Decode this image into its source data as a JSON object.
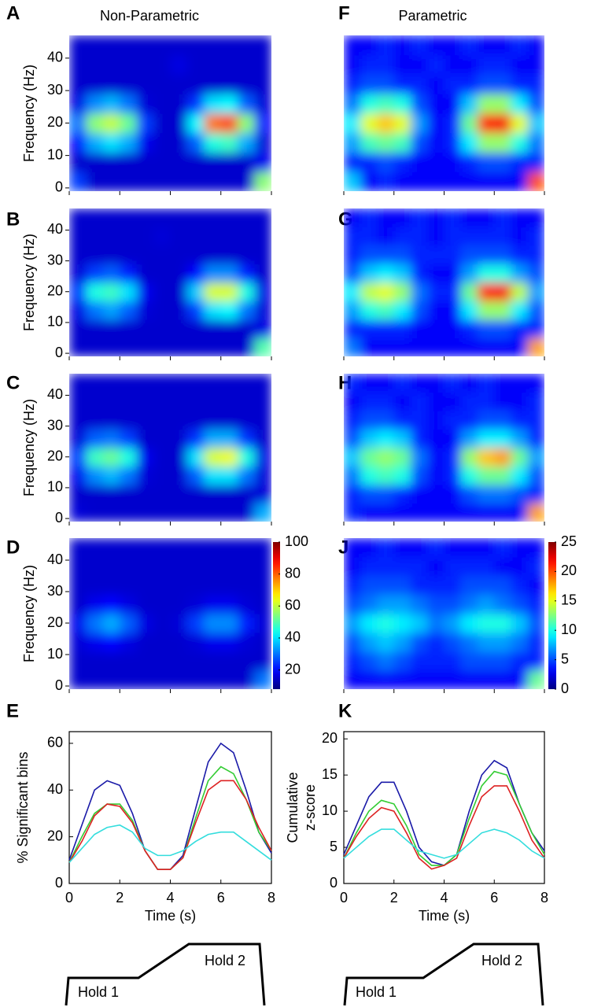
{
  "columns": [
    "Non-Parametric",
    "Parametric"
  ],
  "chart_data": [
    {
      "type": "heatmap",
      "panel": "A",
      "ylabel": "Frequency (Hz)",
      "xlim": [
        0,
        8
      ],
      "xticks": [
        0,
        2,
        4,
        6,
        8
      ],
      "ylim": [
        -1,
        47
      ],
      "yticks": [
        0,
        10,
        20,
        30,
        40
      ],
      "clim": [
        8,
        100
      ],
      "z": [
        [
          25,
          15,
          15,
          15,
          15,
          15,
          15,
          15,
          15,
          15,
          15,
          55
        ],
        [
          15,
          15,
          15,
          15,
          15,
          15,
          15,
          15,
          15,
          15,
          15,
          18
        ],
        [
          20,
          35,
          40,
          35,
          18,
          15,
          15,
          28,
          45,
          48,
          35,
          16
        ],
        [
          30,
          55,
          60,
          52,
          25,
          15,
          15,
          42,
          78,
          82,
          55,
          20
        ],
        [
          17,
          32,
          36,
          30,
          16,
          15,
          15,
          24,
          40,
          42,
          28,
          16
        ],
        [
          15,
          15,
          15,
          15,
          15,
          15,
          15,
          15,
          15,
          15,
          15,
          15
        ],
        [
          15,
          15,
          15,
          15,
          15,
          15,
          17,
          15,
          15,
          15,
          15,
          15
        ],
        [
          15,
          15,
          15,
          15,
          15,
          15,
          15,
          15,
          15,
          15,
          15,
          15
        ]
      ]
    },
    {
      "type": "heatmap",
      "panel": "B",
      "ylabel": "Frequency (Hz)",
      "xlim": [
        0,
        8
      ],
      "xticks": [
        0,
        2,
        4,
        6,
        8
      ],
      "ylim": [
        -1,
        47
      ],
      "yticks": [
        0,
        10,
        20,
        30,
        40
      ],
      "clim": [
        8,
        100
      ],
      "z": [
        [
          15,
          15,
          15,
          15,
          15,
          15,
          15,
          15,
          15,
          15,
          15,
          50
        ],
        [
          15,
          15,
          15,
          15,
          15,
          15,
          15,
          15,
          15,
          15,
          15,
          17
        ],
        [
          17,
          30,
          34,
          28,
          16,
          15,
          15,
          25,
          40,
          42,
          30,
          16
        ],
        [
          25,
          45,
          48,
          40,
          18,
          15,
          15,
          38,
          62,
          62,
          45,
          17
        ],
        [
          16,
          25,
          28,
          22,
          15,
          15,
          15,
          20,
          32,
          32,
          22,
          15
        ],
        [
          15,
          15,
          15,
          15,
          15,
          15,
          15,
          15,
          15,
          15,
          15,
          15
        ],
        [
          15,
          15,
          15,
          15,
          15,
          16,
          15,
          15,
          15,
          15,
          15,
          15
        ],
        [
          15,
          15,
          15,
          15,
          15,
          15,
          15,
          15,
          15,
          15,
          15,
          15
        ]
      ]
    },
    {
      "type": "heatmap",
      "panel": "C",
      "ylabel": "Frequency (Hz)",
      "xlim": [
        0,
        8
      ],
      "xticks": [
        0,
        2,
        4,
        6,
        8
      ],
      "ylim": [
        -1,
        47
      ],
      "yticks": [
        0,
        10,
        20,
        30,
        40
      ],
      "clim": [
        8,
        100
      ],
      "z": [
        [
          16,
          15,
          15,
          15,
          15,
          15,
          15,
          15,
          15,
          15,
          15,
          35
        ],
        [
          15,
          15,
          15,
          15,
          15,
          15,
          15,
          15,
          15,
          15,
          15,
          16
        ],
        [
          18,
          32,
          36,
          30,
          16,
          15,
          15,
          28,
          40,
          40,
          30,
          16
        ],
        [
          25,
          48,
          52,
          45,
          18,
          15,
          15,
          40,
          62,
          64,
          45,
          17
        ],
        [
          16,
          28,
          30,
          25,
          15,
          15,
          15,
          24,
          35,
          35,
          24,
          15
        ],
        [
          15,
          15,
          15,
          15,
          15,
          15,
          15,
          15,
          15,
          15,
          15,
          15
        ],
        [
          15,
          15,
          15,
          15,
          15,
          15,
          15,
          15,
          15,
          15,
          15,
          15
        ],
        [
          15,
          15,
          15,
          15,
          15,
          15,
          15,
          15,
          15,
          15,
          15,
          15
        ]
      ]
    },
    {
      "type": "heatmap",
      "panel": "D",
      "ylabel": "Frequency (Hz)",
      "xlim": [
        0,
        8
      ],
      "xticks": [
        0,
        2,
        4,
        6,
        8
      ],
      "ylim": [
        -1,
        47
      ],
      "yticks": [
        0,
        10,
        20,
        30,
        40
      ],
      "clim": [
        8,
        100
      ],
      "z": [
        [
          15,
          15,
          15,
          15,
          15,
          15,
          15,
          15,
          15,
          15,
          15,
          30
        ],
        [
          15,
          15,
          15,
          15,
          15,
          15,
          15,
          15,
          15,
          15,
          15,
          15
        ],
        [
          16,
          18,
          20,
          17,
          15,
          15,
          15,
          16,
          18,
          18,
          16,
          15
        ],
        [
          18,
          30,
          35,
          28,
          17,
          15,
          16,
          25,
          32,
          32,
          22,
          16
        ],
        [
          15,
          18,
          20,
          17,
          15,
          15,
          15,
          16,
          18,
          18,
          16,
          15
        ],
        [
          15,
          15,
          15,
          15,
          15,
          15,
          15,
          15,
          15,
          15,
          15,
          15
        ],
        [
          15,
          15,
          15,
          15,
          15,
          15,
          15,
          15,
          15,
          15,
          15,
          15
        ],
        [
          15,
          15,
          15,
          15,
          15,
          15,
          15,
          15,
          15,
          15,
          15,
          15
        ]
      ]
    },
    {
      "type": "heatmap",
      "panel": "F",
      "xlim": [
        0,
        8
      ],
      "xticks": [
        0,
        2,
        4,
        6,
        8
      ],
      "ylim": [
        -1,
        47
      ],
      "clim": [
        0,
        25
      ],
      "z": [
        [
          8,
          3,
          4,
          3,
          3,
          3,
          3,
          3,
          3,
          3,
          3,
          20
        ],
        [
          4,
          4,
          5,
          4,
          3,
          3,
          3,
          4,
          5,
          5,
          4,
          4
        ],
        [
          7,
          11,
          12,
          11,
          5,
          3,
          4,
          9,
          13,
          13,
          10,
          6
        ],
        [
          9,
          15,
          17,
          15,
          7,
          3,
          4,
          12,
          21,
          22,
          15,
          8
        ],
        [
          6,
          10,
          11,
          10,
          5,
          3,
          3,
          8,
          13,
          13,
          9,
          5
        ],
        [
          4,
          5,
          5,
          4,
          4,
          3,
          4,
          4,
          5,
          5,
          4,
          4
        ],
        [
          3,
          4,
          4,
          3,
          3,
          4,
          3,
          3,
          4,
          4,
          3,
          3
        ],
        [
          3,
          3,
          4,
          3,
          4,
          3,
          3,
          4,
          3,
          3,
          4,
          3
        ]
      ]
    },
    {
      "type": "heatmap",
      "panel": "G",
      "xlim": [
        0,
        8
      ],
      "xticks": [
        0,
        2,
        4,
        6,
        8
      ],
      "ylim": [
        -1,
        47
      ],
      "clim": [
        0,
        25
      ],
      "z": [
        [
          6,
          3,
          3,
          3,
          3,
          3,
          3,
          3,
          3,
          3,
          3,
          18
        ],
        [
          4,
          4,
          4,
          4,
          3,
          3,
          3,
          4,
          5,
          5,
          4,
          4
        ],
        [
          7,
          10,
          11,
          9,
          5,
          3,
          3,
          9,
          13,
          13,
          9,
          5
        ],
        [
          9,
          14,
          15,
          13,
          6,
          4,
          4,
          12,
          21,
          22,
          14,
          7
        ],
        [
          5,
          8,
          9,
          8,
          4,
          3,
          3,
          7,
          10,
          10,
          7,
          5
        ],
        [
          4,
          5,
          5,
          5,
          4,
          4,
          4,
          5,
          5,
          5,
          4,
          4
        ],
        [
          4,
          4,
          3,
          4,
          4,
          3,
          4,
          4,
          4,
          4,
          3,
          4
        ],
        [
          3,
          4,
          3,
          3,
          4,
          3,
          4,
          3,
          3,
          4,
          3,
          3
        ]
      ]
    },
    {
      "type": "heatmap",
      "panel": "H",
      "xlim": [
        0,
        8
      ],
      "xticks": [
        0,
        2,
        4,
        6,
        8
      ],
      "ylim": [
        -1,
        47
      ],
      "clim": [
        0,
        25
      ],
      "z": [
        [
          4,
          3,
          3,
          3,
          3,
          3,
          3,
          3,
          3,
          3,
          3,
          18
        ],
        [
          4,
          5,
          5,
          4,
          3,
          3,
          3,
          5,
          6,
          6,
          5,
          4
        ],
        [
          6,
          10,
          11,
          10,
          5,
          3,
          4,
          10,
          12,
          12,
          9,
          5
        ],
        [
          8,
          12,
          13,
          12,
          6,
          3,
          4,
          13,
          17,
          18,
          12,
          7
        ],
        [
          5,
          8,
          9,
          8,
          4,
          3,
          3,
          7,
          9,
          9,
          7,
          4
        ],
        [
          4,
          5,
          5,
          4,
          4,
          3,
          4,
          4,
          5,
          5,
          4,
          4
        ],
        [
          3,
          4,
          4,
          3,
          4,
          3,
          3,
          4,
          4,
          3,
          3,
          4
        ],
        [
          4,
          3,
          3,
          4,
          3,
          3,
          4,
          3,
          4,
          3,
          3,
          3
        ]
      ]
    },
    {
      "type": "heatmap",
      "panel": "J",
      "xlim": [
        0,
        8
      ],
      "xticks": [
        0,
        2,
        4,
        6,
        8
      ],
      "ylim": [
        -1,
        47
      ],
      "clim": [
        0,
        25
      ],
      "z": [
        [
          3,
          3,
          3,
          3,
          3,
          3,
          3,
          3,
          3,
          3,
          3,
          12
        ],
        [
          4,
          5,
          6,
          5,
          4,
          4,
          4,
          5,
          5,
          5,
          4,
          4
        ],
        [
          5,
          7,
          8,
          7,
          5,
          4,
          5,
          6,
          7,
          7,
          6,
          4
        ],
        [
          7,
          9,
          10,
          9,
          8,
          6,
          7,
          9,
          10,
          10,
          8,
          5
        ],
        [
          5,
          6,
          7,
          7,
          6,
          5,
          5,
          6,
          7,
          6,
          5,
          4
        ],
        [
          4,
          5,
          5,
          5,
          4,
          4,
          4,
          5,
          5,
          5,
          4,
          3
        ],
        [
          3,
          4,
          4,
          4,
          4,
          3,
          4,
          4,
          4,
          3,
          3,
          4
        ],
        [
          3,
          3,
          4,
          3,
          3,
          4,
          3,
          3,
          3,
          4,
          3,
          3
        ]
      ]
    },
    {
      "type": "colorbar",
      "ylim": [
        8,
        100
      ],
      "yticks": [
        20,
        40,
        60,
        80,
        100
      ]
    },
    {
      "type": "colorbar",
      "ylim": [
        0,
        25
      ],
      "yticks": [
        0,
        5,
        10,
        15,
        20,
        25
      ]
    },
    {
      "type": "line",
      "panel": "E",
      "ylabel": "% Significant bins",
      "xlabel": "Time (s)",
      "x": [
        0,
        0.5,
        1,
        1.5,
        2,
        2.5,
        3,
        3.5,
        4,
        4.5,
        5,
        5.5,
        6,
        6.5,
        7,
        7.5,
        8
      ],
      "xlim": [
        0,
        8
      ],
      "xticks": [
        0,
        2,
        4,
        6,
        8
      ],
      "ylim": [
        0,
        65
      ],
      "yticks": [
        0,
        20,
        40,
        60
      ],
      "series": [
        {
          "color": "#1a1aa8",
          "values": [
            10,
            25,
            40,
            44,
            42,
            30,
            14,
            6,
            6,
            12,
            32,
            52,
            60,
            56,
            40,
            22,
            13
          ]
        },
        {
          "color": "#33cc33",
          "values": [
            9,
            20,
            30,
            34,
            34,
            27,
            14,
            6,
            6,
            11,
            28,
            44,
            50,
            47,
            36,
            22,
            14
          ]
        },
        {
          "color": "#dd2222",
          "values": [
            9,
            18,
            29,
            34,
            33,
            26,
            14,
            6,
            6,
            11,
            26,
            40,
            44,
            44,
            36,
            24,
            14
          ]
        },
        {
          "color": "#33dddd",
          "values": [
            9,
            15,
            21,
            24,
            25,
            22,
            15,
            12,
            12,
            14,
            18,
            21,
            22,
            22,
            18,
            14,
            10
          ]
        }
      ]
    },
    {
      "type": "line",
      "panel": "K",
      "ylabel": [
        "Cumulative",
        "z-score"
      ],
      "xlabel": "Time (s)",
      "x": [
        0,
        0.5,
        1,
        1.5,
        2,
        2.5,
        3,
        3.5,
        4,
        4.5,
        5,
        5.5,
        6,
        6.5,
        7,
        7.5,
        8
      ],
      "xlim": [
        0,
        8
      ],
      "xticks": [
        0,
        2,
        4,
        6,
        8
      ],
      "ylim": [
        0,
        21
      ],
      "yticks": [
        0,
        5,
        10,
        15,
        20
      ],
      "series": [
        {
          "color": "#1a1aa8",
          "values": [
            4,
            8,
            12,
            14,
            14,
            10,
            5,
            3,
            2.5,
            4,
            10,
            15,
            17,
            16,
            11,
            7,
            4.5
          ]
        },
        {
          "color": "#33cc33",
          "values": [
            3.5,
            7,
            10,
            11.5,
            11,
            8,
            4,
            2.5,
            2.5,
            4,
            9,
            13.5,
            15.5,
            15,
            11,
            7,
            4
          ]
        },
        {
          "color": "#dd2222",
          "values": [
            3.5,
            6.5,
            9,
            10.5,
            10,
            7,
            3.5,
            2,
            2.5,
            3.5,
            8,
            12,
            13.5,
            13.5,
            10,
            6,
            3.5
          ]
        },
        {
          "color": "#33dddd",
          "values": [
            3.5,
            5,
            6.5,
            7.5,
            7.5,
            6,
            4.5,
            4,
            3.5,
            4,
            5.5,
            7,
            7.5,
            7,
            6,
            4.5,
            3.5
          ]
        }
      ]
    }
  ],
  "diagrams": [
    {
      "labels": [
        "Hold 1",
        "Hold 2"
      ]
    },
    {
      "labels": [
        "Hold 1",
        "Hold 2"
      ]
    }
  ]
}
